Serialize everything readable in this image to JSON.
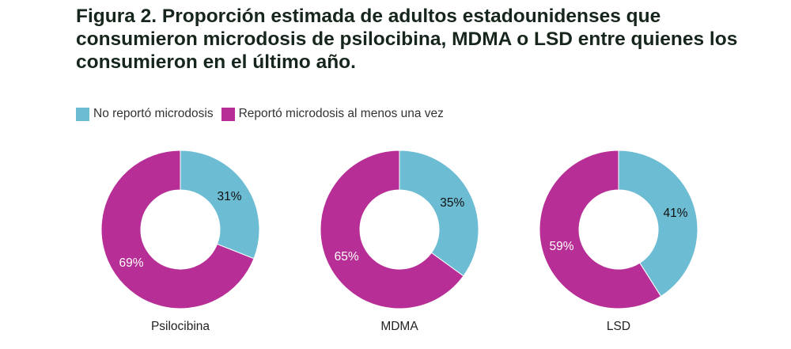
{
  "title": "Figura 2. Proporción estimada de adultos estadounidenses que consumieron microdosis de psilocibina, MDMA o LSD entre quienes los consumieron en el último año.",
  "chart_data": {
    "type": "pie",
    "variant": "donut",
    "legend": {
      "placement": "top-left",
      "entries": [
        "No reportó microdosis",
        "Reportó microdosis al menos una vez"
      ]
    },
    "colors": {
      "No reportó microdosis": "#6cbcd3",
      "Reportó microdosis al menos una vez": "#b72f96"
    },
    "charts": [
      {
        "label": "Psilocibina",
        "values": [
          31,
          69
        ],
        "labels": [
          "31%",
          "69%"
        ]
      },
      {
        "label": "MDMA",
        "values": [
          35,
          65
        ],
        "labels": [
          "35%",
          "65%"
        ]
      },
      {
        "label": "LSD",
        "values": [
          41,
          59
        ],
        "labels": [
          "41%",
          "59%"
        ]
      }
    ]
  }
}
